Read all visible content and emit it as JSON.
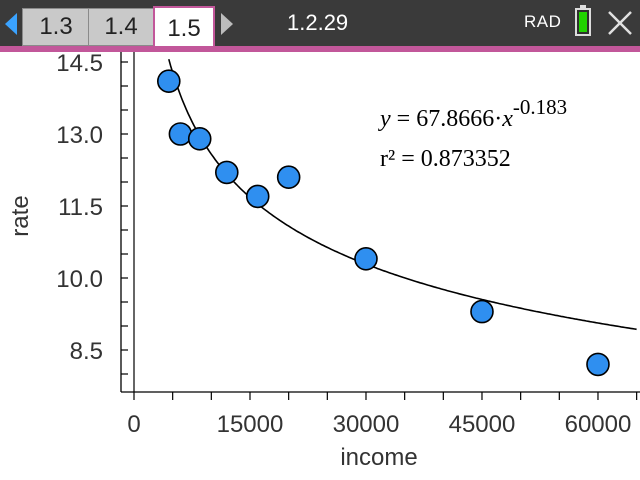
{
  "topbar": {
    "tabs": [
      {
        "label": "1.3"
      },
      {
        "label": "1.4"
      },
      {
        "label": "1.5",
        "active": true
      }
    ],
    "doc_name": "1.2.29",
    "angle_mode": "RAD",
    "battery_color": "#21d400",
    "accent_color": "#c2579a"
  },
  "plot": {
    "equation": {
      "y": "y",
      "eq": " = 67.8666·",
      "x": "x",
      "exponent": "-0.183"
    },
    "r2": "r² = 0.873352"
  },
  "chart_data": {
    "type": "scatter",
    "xlabel": "income",
    "ylabel": "rate",
    "xlim": [
      -500,
      65000
    ],
    "ylim": [
      7.2,
      14.8
    ],
    "xticks": [
      "0",
      "15000",
      "30000",
      "45000",
      "60000"
    ],
    "yticks": [
      "8.5",
      "10.0",
      "11.5",
      "13.0",
      "14.5"
    ],
    "point_color": "#2f8ff0",
    "series": [
      {
        "points": [
          {
            "x": 4500,
            "y": 14.1
          },
          {
            "x": 6000,
            "y": 13.0
          },
          {
            "x": 8500,
            "y": 12.9
          },
          {
            "x": 12000,
            "y": 12.2
          },
          {
            "x": 16000,
            "y": 11.7
          },
          {
            "x": 20000,
            "y": 12.1
          },
          {
            "x": 30000,
            "y": 10.4
          },
          {
            "x": 45000,
            "y": 9.3
          },
          {
            "x": 60000,
            "y": 8.2
          }
        ]
      }
    ],
    "regression": {
      "type": "power",
      "a": 67.8666,
      "b": -0.183
    }
  }
}
